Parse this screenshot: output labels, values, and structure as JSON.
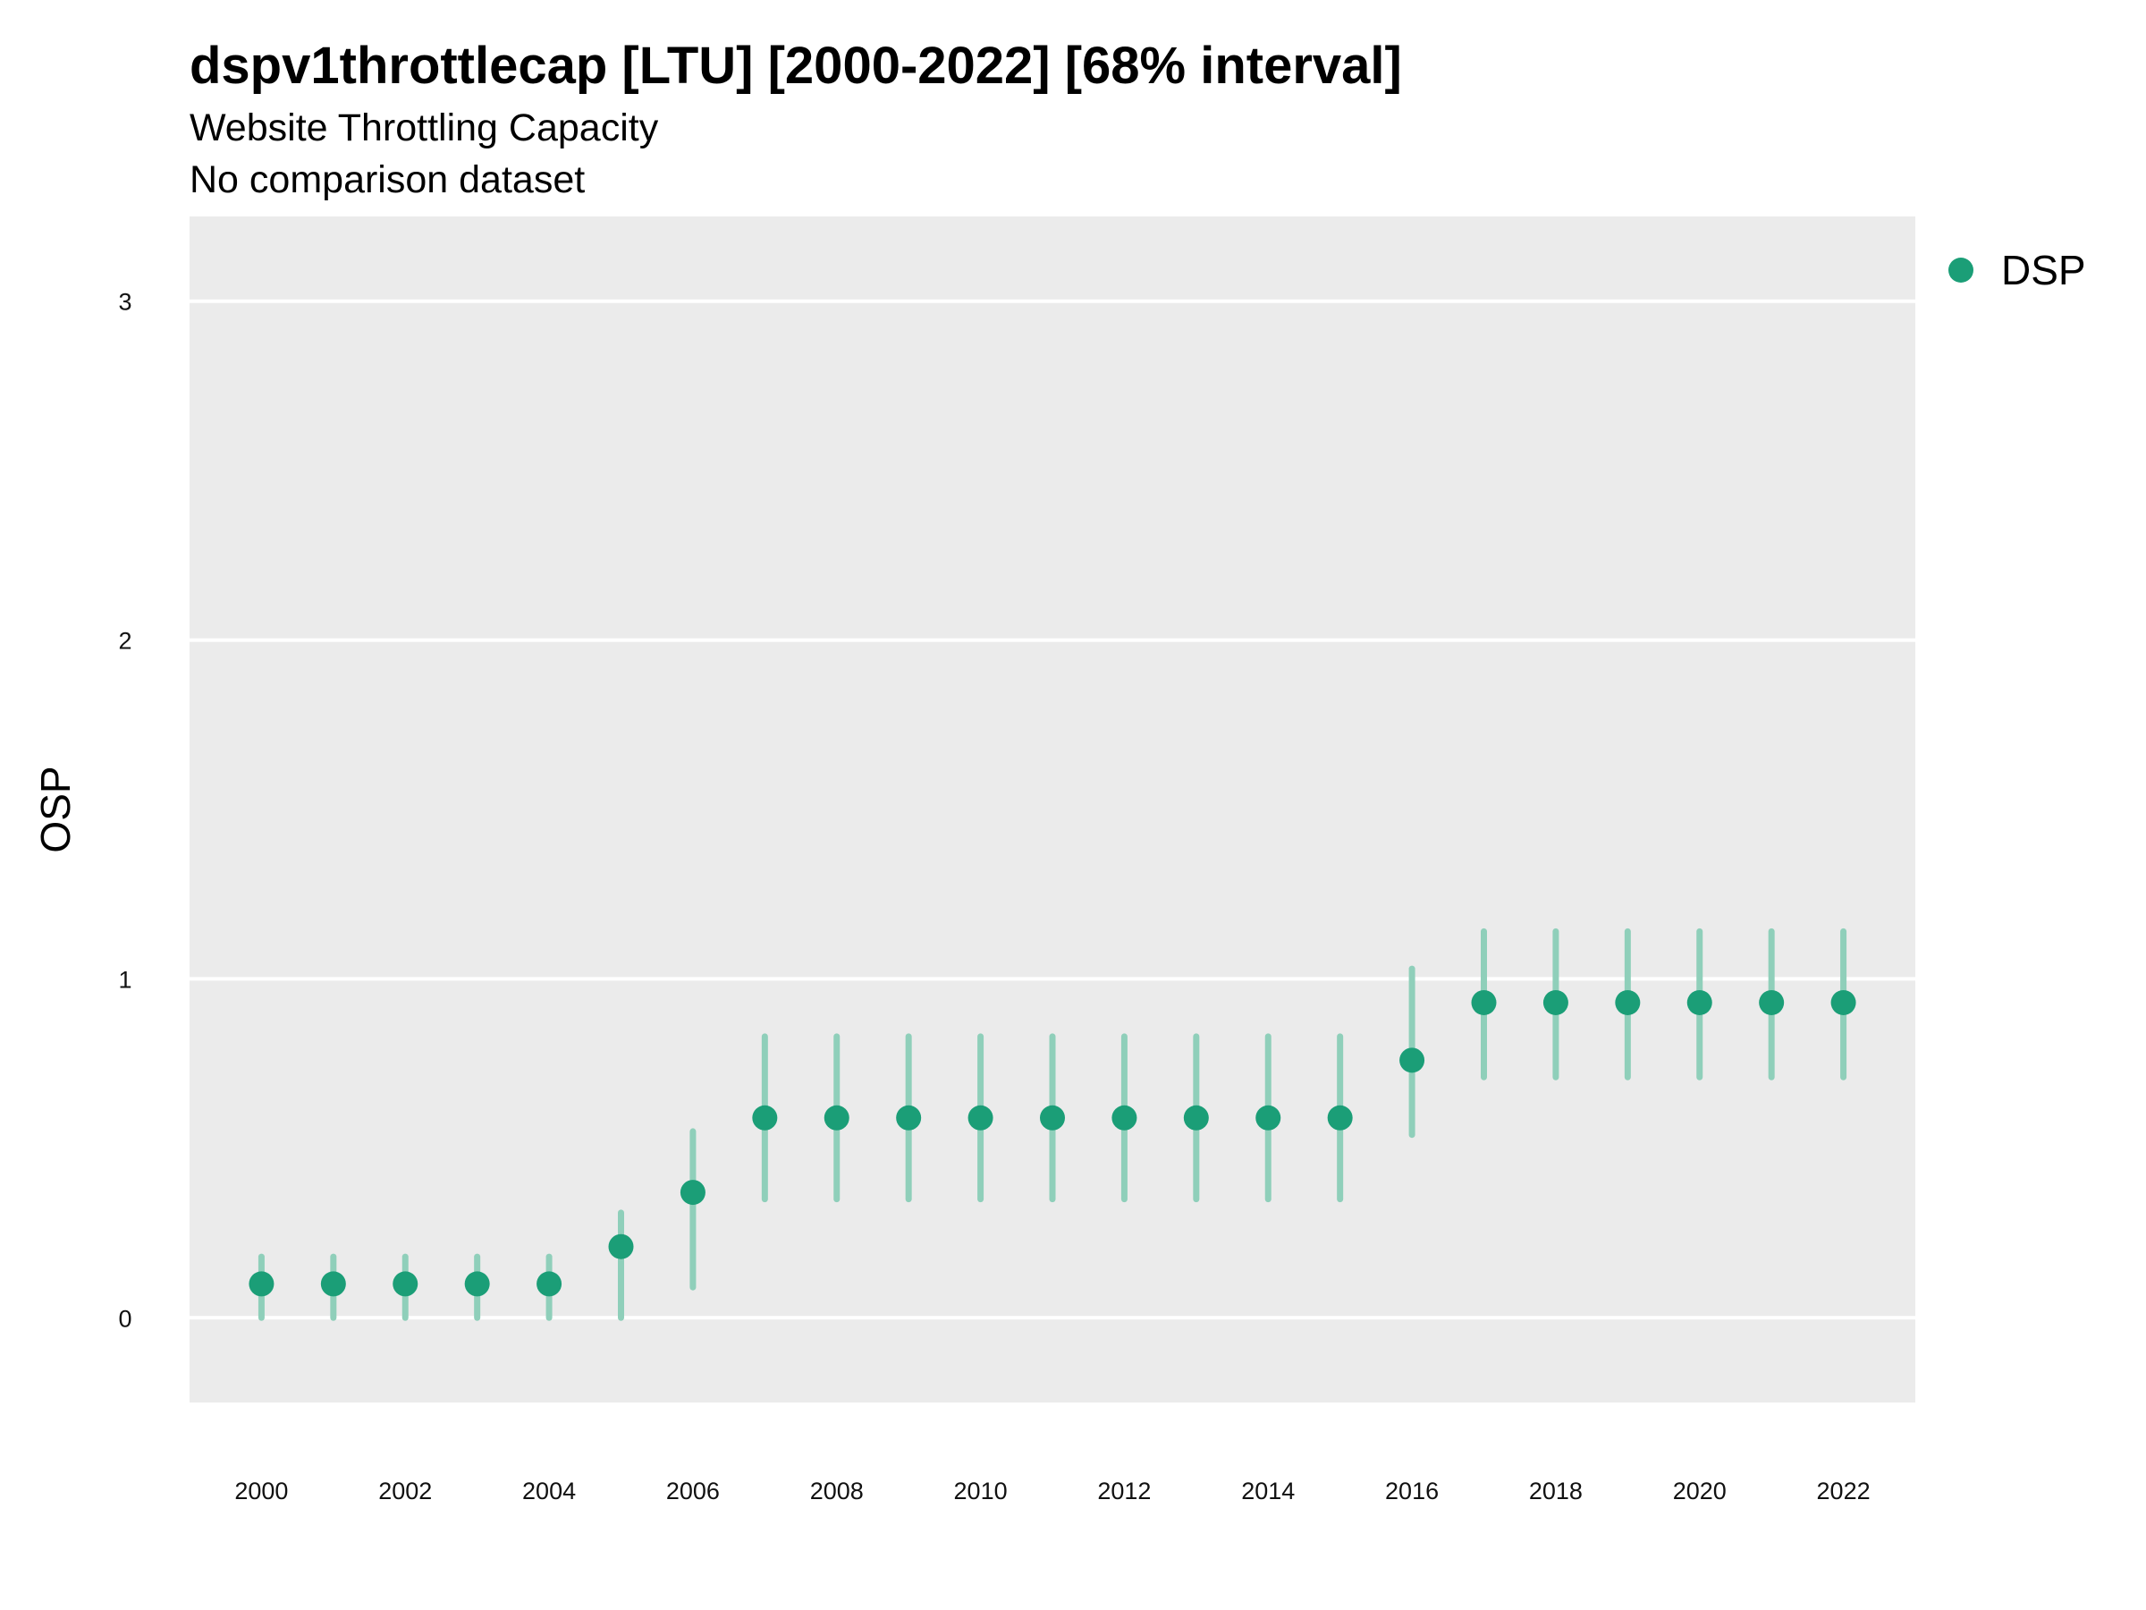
{
  "chart_data": {
    "type": "scatter",
    "title": "dspv1throttlecap [LTU] [2000-2022] [68% interval]",
    "subtitle": "Website Throttling Capacity",
    "caption": "No comparison dataset",
    "xlabel": "",
    "ylabel": "OSP",
    "ylim": [
      -0.25,
      3.25
    ],
    "xlim": [
      1999,
      2023
    ],
    "y_ticks": [
      0,
      1,
      2,
      3
    ],
    "x_ticks": [
      2000,
      2002,
      2004,
      2006,
      2008,
      2010,
      2012,
      2014,
      2016,
      2018,
      2020,
      2022
    ],
    "grid": true,
    "legend_position": "right",
    "colors": {
      "point": "#1b9e77",
      "interval": "#8fcfba",
      "panel": "#ebebeb",
      "gridline": "#ffffff"
    },
    "series": [
      {
        "name": "DSP",
        "x": [
          2000,
          2001,
          2002,
          2003,
          2004,
          2005,
          2006,
          2007,
          2008,
          2009,
          2010,
          2011,
          2012,
          2013,
          2014,
          2015,
          2016,
          2017,
          2018,
          2019,
          2020,
          2021,
          2022
        ],
        "y": [
          0.1,
          0.1,
          0.1,
          0.1,
          0.1,
          0.21,
          0.37,
          0.59,
          0.59,
          0.59,
          0.59,
          0.59,
          0.59,
          0.59,
          0.59,
          0.59,
          0.76,
          0.93,
          0.93,
          0.93,
          0.93,
          0.93,
          0.93
        ],
        "lower": [
          0.0,
          0.0,
          0.0,
          0.0,
          0.0,
          0.0,
          0.09,
          0.35,
          0.35,
          0.35,
          0.35,
          0.35,
          0.35,
          0.35,
          0.35,
          0.35,
          0.54,
          0.71,
          0.71,
          0.71,
          0.71,
          0.71,
          0.71
        ],
        "upper": [
          0.18,
          0.18,
          0.18,
          0.18,
          0.18,
          0.31,
          0.55,
          0.83,
          0.83,
          0.83,
          0.83,
          0.83,
          0.83,
          0.83,
          0.83,
          0.83,
          1.03,
          1.14,
          1.14,
          1.14,
          1.14,
          1.14,
          1.14
        ]
      }
    ]
  }
}
